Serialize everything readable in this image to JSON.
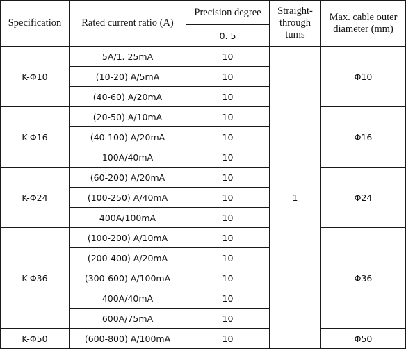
{
  "header": {
    "specification": "Specification",
    "rated_current_ratio": "Rated current ratio (A)",
    "precision_degree": "Precision degree",
    "precision_value": "0. 5",
    "straight_through": "Straight-\nthrough\ntums",
    "max_cable": "Max. cable outer diameter (mm)"
  },
  "straight_through_value": "1",
  "groups": [
    {
      "spec": "K-Φ10",
      "diameter": "Φ10",
      "rows": [
        {
          "ratio": "5A/1. 25mA",
          "precision": "10"
        },
        {
          "ratio": "(10-20) A/5mA",
          "precision": "10"
        },
        {
          "ratio": "(40-60) A/20mA",
          "precision": "10"
        }
      ]
    },
    {
      "spec": "K-Φ16",
      "diameter": "Φ16",
      "rows": [
        {
          "ratio": "(20-50) A/10mA",
          "precision": "10"
        },
        {
          "ratio": "(40-100) A/20mA",
          "precision": "10"
        },
        {
          "ratio": "100A/40mA",
          "precision": "10"
        }
      ]
    },
    {
      "spec": "K-Φ24",
      "diameter": "Φ24",
      "rows": [
        {
          "ratio": "(60-200) A/20mA",
          "precision": "10"
        },
        {
          "ratio": "(100-250) A/40mA",
          "precision": "10"
        },
        {
          "ratio": "400A/100mA",
          "precision": "10"
        }
      ]
    },
    {
      "spec": "K-Φ36",
      "diameter": "Φ36",
      "rows": [
        {
          "ratio": "(100-200) A/10mA",
          "precision": "10"
        },
        {
          "ratio": "(200-400) A/20mA",
          "precision": "10"
        },
        {
          "ratio": "(300-600) A/100mA",
          "precision": "10"
        },
        {
          "ratio": "400A/40mA",
          "precision": "10"
        },
        {
          "ratio": "600A/75mA",
          "precision": "10"
        }
      ]
    },
    {
      "spec": "K-Φ50",
      "diameter": "Φ50",
      "rows": [
        {
          "ratio": "(600-800) A/100mA",
          "precision": "10"
        }
      ]
    }
  ]
}
